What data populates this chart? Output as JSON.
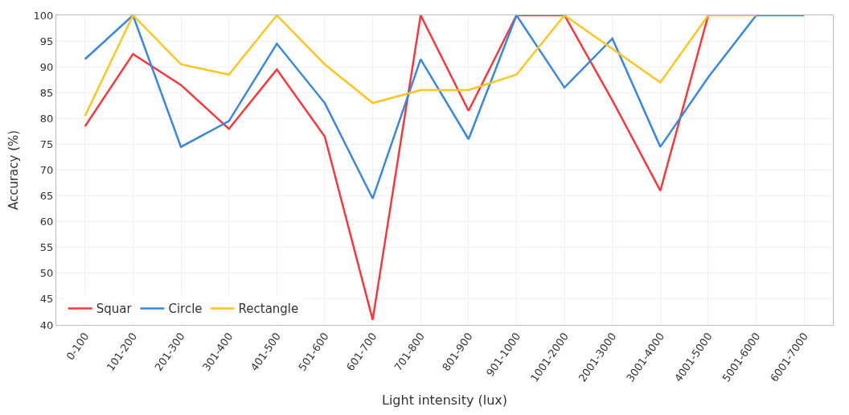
{
  "chart_data": {
    "type": "line",
    "xlabel": "Light intensity (lux)",
    "ylabel": "Accuracy (%)",
    "categories": [
      "0-100",
      "101-200",
      "201-300",
      "301-400",
      "401-500",
      "501-600",
      "601-700",
      "701-800",
      "801-900",
      "901-1000",
      "1001-2000",
      "2001-3000",
      "3001-4000",
      "4001-5000",
      "5001-6000",
      "6001-7000"
    ],
    "series": [
      {
        "name": "Squar",
        "color": "#f5383e",
        "values": [
          78.5,
          92.5,
          86.5,
          78,
          89.5,
          76.5,
          41,
          100,
          81.5,
          100,
          100,
          83.5,
          66,
          100,
          null,
          null
        ]
      },
      {
        "name": "Circle",
        "color": "#3b87da",
        "values": [
          91.5,
          100,
          74.5,
          79.5,
          94.5,
          83,
          64.5,
          91.5,
          76,
          100,
          86,
          95.5,
          74.5,
          88,
          100,
          100
        ]
      },
      {
        "name": "Rectangle",
        "color": "#ffc524",
        "values": [
          80.5,
          100,
          90.5,
          88.5,
          100,
          90.5,
          83,
          85.5,
          85.5,
          88.5,
          100,
          93.5,
          87,
          100,
          100,
          null
        ]
      }
    ],
    "ylim": [
      40,
      100
    ],
    "yticks": [
      40,
      45,
      50,
      55,
      60,
      65,
      70,
      75,
      80,
      85,
      90,
      95,
      100
    ],
    "grid": true,
    "legend": "bottom left",
    "marker": "none",
    "line_style": "solid"
  }
}
